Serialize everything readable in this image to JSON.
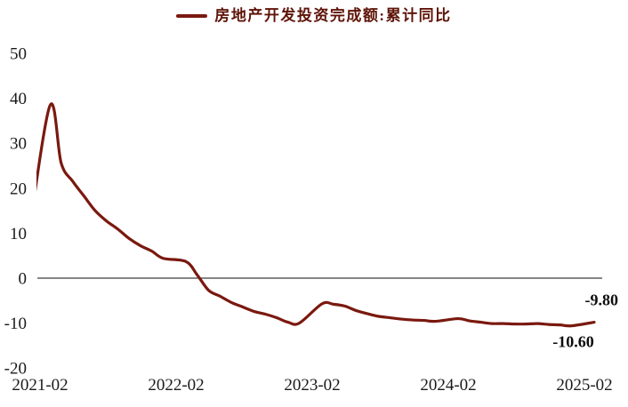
{
  "legend": {
    "label": "房地产开发投资完成额:累计同比",
    "marker": "thick-line-swatch"
  },
  "colors": {
    "series": "#7a190f",
    "legend_text": "#5e1408",
    "axis_text": "#1a1a1a",
    "zero_line": "#3f3f3f",
    "annotation_text": "#0d0d0d",
    "background": "#ffffff"
  },
  "chart_data": {
    "type": "line",
    "title": "房地产开发投资完成额:累计同比",
    "xlabel": "",
    "ylabel": "",
    "x_tick_labels": [
      "2021-02",
      "2022-02",
      "2023-02",
      "2024-02",
      "2025-02"
    ],
    "y_ticks": [
      50,
      40,
      30,
      20,
      10,
      0,
      -10,
      -20
    ],
    "ylim": [
      -20,
      50
    ],
    "x_range_shown": [
      "2021-01",
      "2025-02"
    ],
    "grid": "off",
    "zero_baseline": true,
    "legend_position": "top-center",
    "line_style": "smoothed",
    "series": [
      {
        "name": "房地产开发投资完成额:累计同比",
        "color": "#7a190f",
        "points": [
          [
            "2020-12",
            7.0
          ],
          [
            "2021-02",
            38.3
          ],
          [
            "2021-03",
            25.6
          ],
          [
            "2021-04",
            21.6
          ],
          [
            "2021-05",
            18.3
          ],
          [
            "2021-06",
            15.0
          ],
          [
            "2021-07",
            12.7
          ],
          [
            "2021-08",
            10.9
          ],
          [
            "2021-09",
            8.8
          ],
          [
            "2021-10",
            7.2
          ],
          [
            "2021-11",
            6.0
          ],
          [
            "2021-12",
            4.4
          ],
          [
            "2022-02",
            3.7
          ],
          [
            "2022-03",
            0.7
          ],
          [
            "2022-04",
            -2.7
          ],
          [
            "2022-05",
            -4.0
          ],
          [
            "2022-06",
            -5.4
          ],
          [
            "2022-07",
            -6.4
          ],
          [
            "2022-08",
            -7.4
          ],
          [
            "2022-09",
            -8.0
          ],
          [
            "2022-10",
            -8.8
          ],
          [
            "2022-11",
            -9.8
          ],
          [
            "2022-12",
            -10.0
          ],
          [
            "2023-02",
            -5.7
          ],
          [
            "2023-03",
            -5.8
          ],
          [
            "2023-04",
            -6.2
          ],
          [
            "2023-05",
            -7.2
          ],
          [
            "2023-06",
            -7.9
          ],
          [
            "2023-07",
            -8.5
          ],
          [
            "2023-08",
            -8.8
          ],
          [
            "2023-09",
            -9.1
          ],
          [
            "2023-10",
            -9.3
          ],
          [
            "2023-11",
            -9.4
          ],
          [
            "2023-12",
            -9.6
          ],
          [
            "2024-02",
            -9.0
          ],
          [
            "2024-03",
            -9.5
          ],
          [
            "2024-04",
            -9.8
          ],
          [
            "2024-05",
            -10.1
          ],
          [
            "2024-06",
            -10.1
          ],
          [
            "2024-07",
            -10.2
          ],
          [
            "2024-08",
            -10.2
          ],
          [
            "2024-09",
            -10.1
          ],
          [
            "2024-10",
            -10.3
          ],
          [
            "2024-11",
            -10.4
          ],
          [
            "2024-12",
            -10.6
          ],
          [
            "2025-02",
            -9.8
          ]
        ],
        "notes": "first point (2020-12) is clipped by the left edge of the plot area; January slots are skipped (no published data)"
      }
    ],
    "annotations": [
      {
        "text": "-9.80",
        "attach": "2025-02",
        "placement": "above"
      },
      {
        "text": "-10.60",
        "attach": "2024-12",
        "placement": "below"
      }
    ]
  }
}
